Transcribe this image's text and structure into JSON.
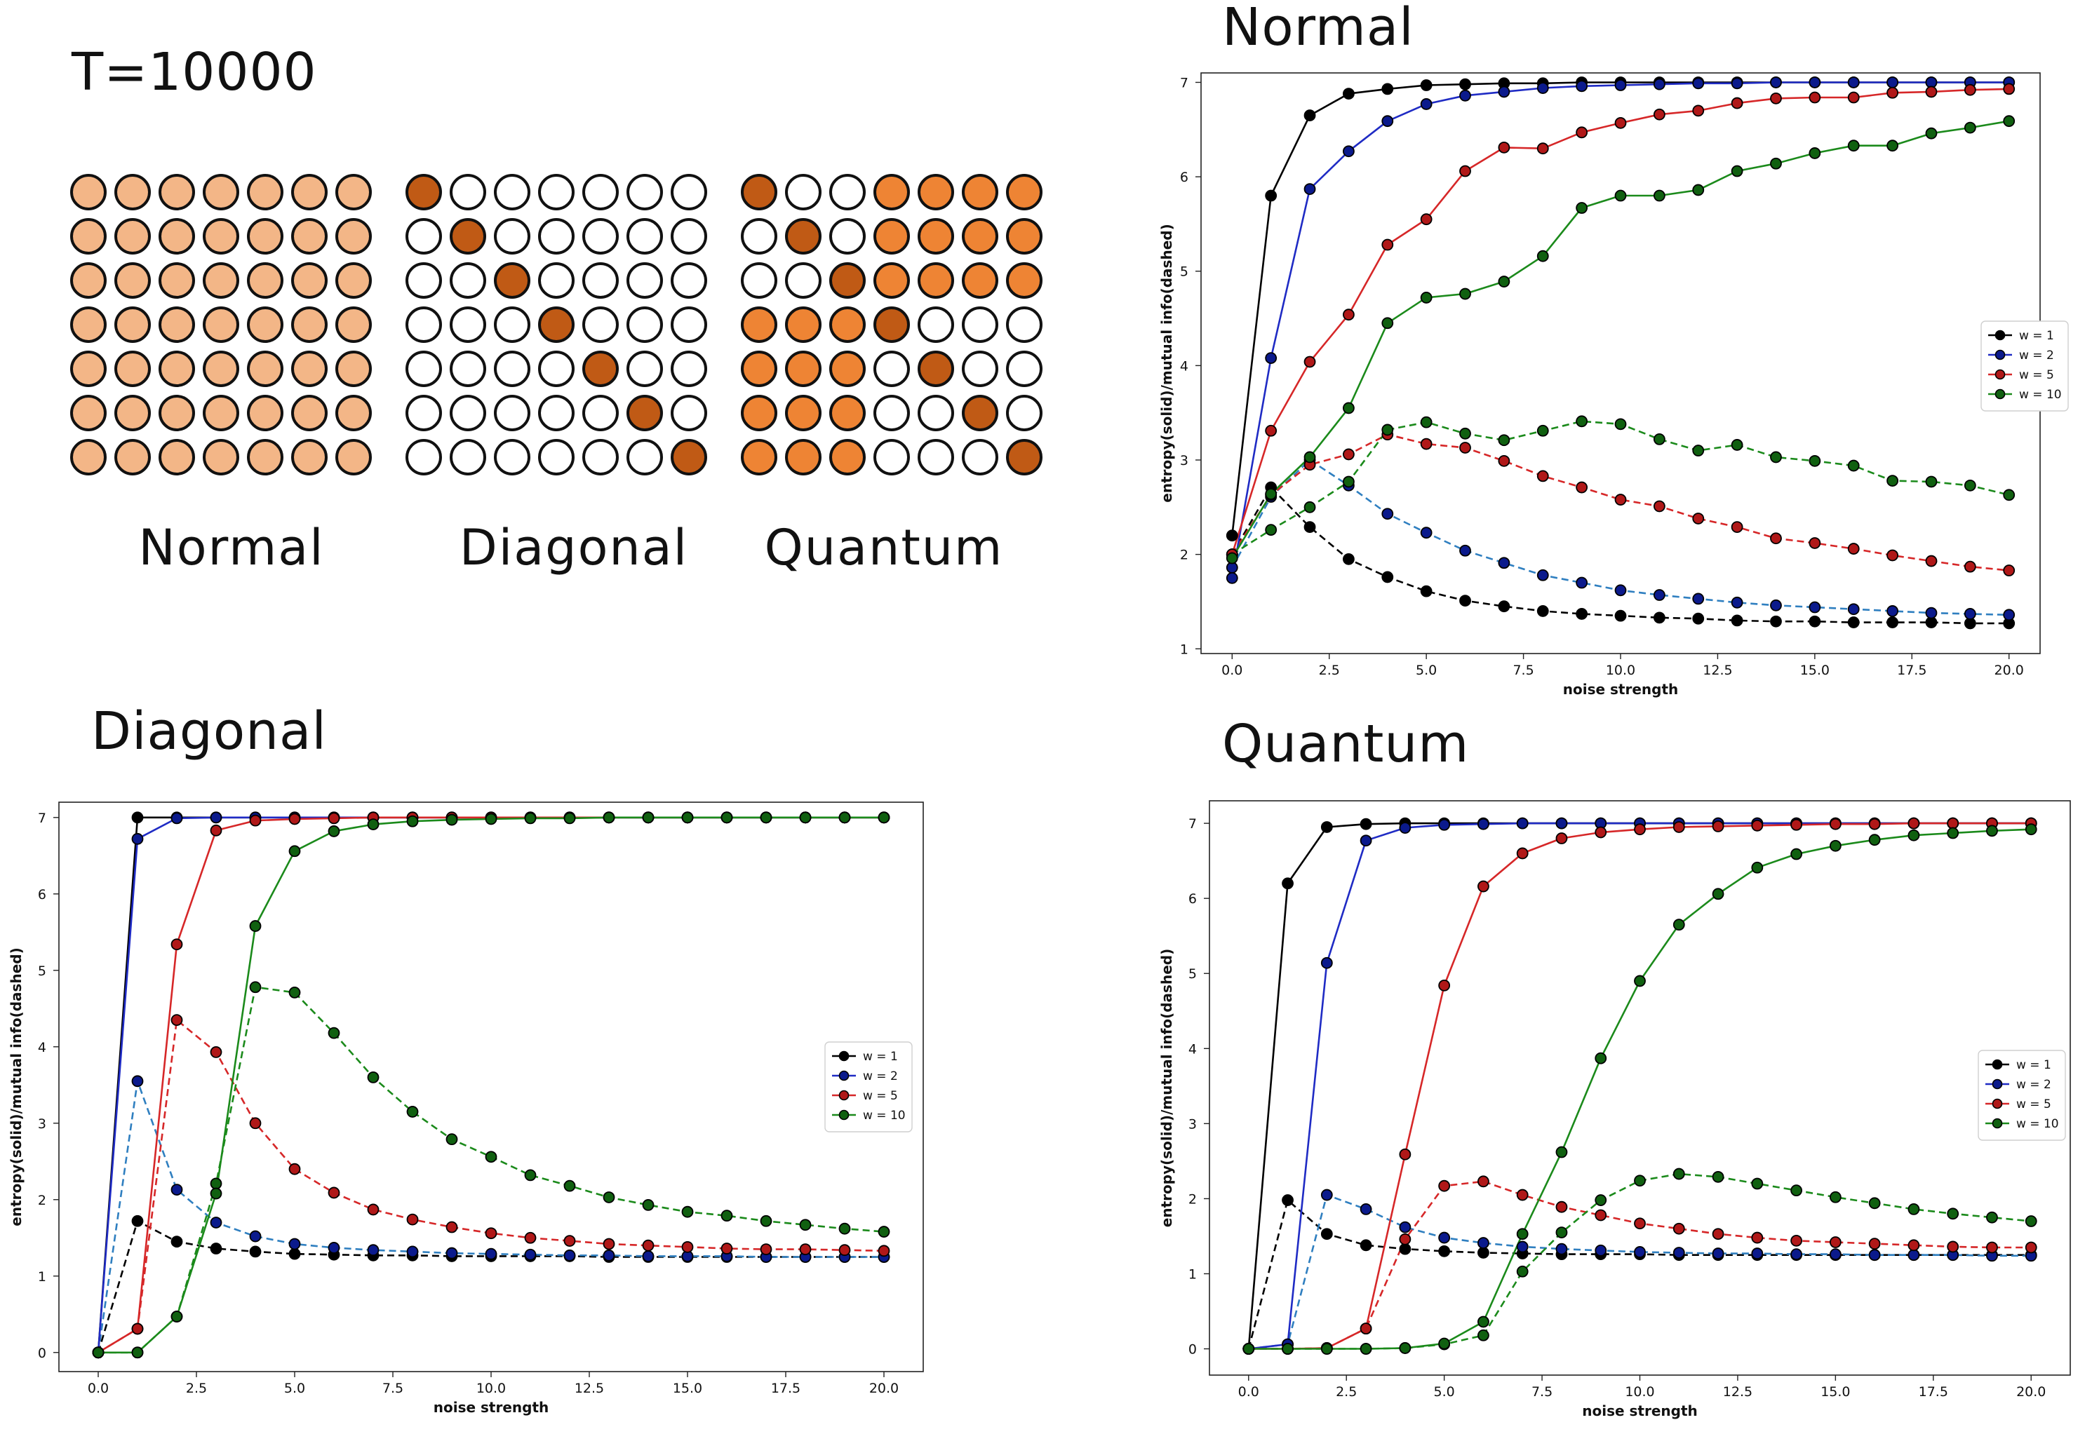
{
  "header": {
    "time_label": "T=10000"
  },
  "patterns": {
    "colors": {
      "light": "#f3b687",
      "orange": "#ee8434",
      "dark": "#c05a15",
      "empty": "#ffffff"
    },
    "items": [
      {
        "label": "Normal",
        "grid": [
          "LLLLLLL",
          "LLLLLLL",
          "LLLLLLL",
          "LLLLLLL",
          "LLLLLLL",
          "LLLLLLL",
          "LLLLLLL"
        ]
      },
      {
        "label": "Diagonal",
        "grid": [
          "D......",
          ".D.....",
          "..D....",
          "...D...",
          "....D..",
          ".....D.",
          "......D"
        ]
      },
      {
        "label": "Quantum",
        "grid": [
          "D..OOOO",
          ".D.OOOO",
          "..DOOOO",
          "OOOD...",
          "OOO.D..",
          "OOO..D.",
          "OOO...D"
        ]
      }
    ]
  },
  "chart_data": [
    {
      "id": "normal",
      "title": "Normal",
      "type": "line",
      "xlabel": "noise strength",
      "ylabel": "entropy(solid)/mutual info(dashed)",
      "xlim": [
        -0.8,
        20.8
      ],
      "ylim": [
        0.95,
        7.1
      ],
      "xticks": [
        "0.0",
        "2.5",
        "5.0",
        "7.5",
        "10.0",
        "12.5",
        "15.0",
        "17.5",
        "20.0"
      ],
      "yticks": [
        "1",
        "2",
        "3",
        "4",
        "5",
        "6",
        "7"
      ],
      "legend": [
        "w = 1",
        "w = 2",
        "w = 5",
        "w = 10"
      ],
      "legend_position": "center-right",
      "x": [
        0,
        1,
        2,
        3,
        4,
        5,
        6,
        7,
        8,
        9,
        10,
        11,
        12,
        13,
        14,
        15,
        16,
        17,
        18,
        19,
        20
      ],
      "series": [
        {
          "name": "w = 1",
          "color": "#000000",
          "style": "solid",
          "marker": "#000000",
          "values": [
            2.2,
            5.8,
            6.65,
            6.88,
            6.93,
            6.97,
            6.98,
            6.99,
            6.99,
            7.0,
            7.0,
            7.0,
            7.0,
            7.0,
            7.0,
            7.0,
            7.0,
            7.0,
            7.0,
            7.0,
            7.0
          ]
        },
        {
          "name": "w = 2",
          "color": "#1f2bc4",
          "style": "solid",
          "marker": "#0b1a8c",
          "values": [
            1.75,
            4.08,
            5.87,
            6.27,
            6.59,
            6.77,
            6.86,
            6.9,
            6.94,
            6.96,
            6.97,
            6.98,
            6.99,
            6.99,
            7.0,
            7.0,
            7.0,
            7.0,
            7.0,
            7.0,
            7.0
          ]
        },
        {
          "name": "w = 5",
          "color": "#d62728",
          "style": "solid",
          "marker": "#b01818",
          "values": [
            2.0,
            3.31,
            4.04,
            4.54,
            5.28,
            5.55,
            6.06,
            6.31,
            6.3,
            6.47,
            6.57,
            6.66,
            6.7,
            6.78,
            6.83,
            6.84,
            6.84,
            6.89,
            6.9,
            6.92,
            6.93
          ]
        },
        {
          "name": "w = 10",
          "color": "#1b8a1b",
          "style": "solid",
          "marker": "#106010",
          "values": [
            1.96,
            2.64,
            3.03,
            3.55,
            4.45,
            4.72,
            4.76,
            4.89,
            5.16,
            5.67,
            5.8,
            5.8,
            5.86,
            6.06,
            6.14,
            6.25,
            6.33,
            6.33,
            6.46,
            6.52,
            6.59
          ]
        },
        {
          "name": "w = 1 MI",
          "color": "#000000",
          "style": "dashed",
          "marker": "#000000",
          "values": [
            2.0,
            2.71,
            2.29,
            1.95,
            1.76,
            1.61,
            1.51,
            1.45,
            1.4,
            1.37,
            1.35,
            1.33,
            1.32,
            1.3,
            1.29,
            1.29,
            1.28,
            1.28,
            1.28,
            1.27,
            1.27
          ]
        },
        {
          "name": "w = 2 MI",
          "color": "#2f7fc0",
          "style": "dashed",
          "marker": "#0b1a8c",
          "values": [
            1.86,
            2.61,
            3.0,
            2.73,
            2.43,
            2.23,
            2.04,
            1.91,
            1.78,
            1.7,
            1.62,
            1.57,
            1.53,
            1.49,
            1.46,
            1.44,
            1.42,
            1.4,
            1.38,
            1.37,
            1.36
          ]
        },
        {
          "name": "w = 5 MI",
          "color": "#d62728",
          "style": "dashed",
          "marker": "#b01818",
          "values": [
            2.0,
            2.63,
            2.95,
            3.06,
            3.27,
            3.17,
            3.13,
            2.99,
            2.83,
            2.71,
            2.58,
            2.51,
            2.38,
            2.29,
            2.17,
            2.12,
            2.06,
            1.99,
            1.93,
            1.87,
            1.83
          ]
        },
        {
          "name": "w = 10 MI",
          "color": "#1b8a1b",
          "style": "dashed",
          "marker": "#106010",
          "values": [
            2.0,
            2.26,
            2.5,
            2.77,
            3.32,
            3.4,
            3.28,
            3.21,
            3.31,
            3.41,
            3.38,
            3.22,
            3.1,
            3.16,
            3.03,
            2.99,
            2.94,
            2.78,
            2.77,
            2.73,
            2.63
          ]
        }
      ]
    },
    {
      "id": "diagonal",
      "title": "Diagonal",
      "type": "line",
      "xlabel": "noise strength",
      "ylabel": "entropy(solid)/mutual info(dashed)",
      "xlim": [
        -1.0,
        21.0
      ],
      "ylim": [
        -0.25,
        7.2
      ],
      "xticks": [
        "0.0",
        "2.5",
        "5.0",
        "7.5",
        "10.0",
        "12.5",
        "15.0",
        "17.5",
        "20.0"
      ],
      "yticks": [
        "0",
        "1",
        "2",
        "3",
        "4",
        "5",
        "6",
        "7"
      ],
      "legend": [
        "w = 1",
        "w = 2",
        "w = 5",
        "w = 10"
      ],
      "legend_position": "center-right",
      "x": [
        0,
        1,
        2,
        3,
        4,
        5,
        6,
        7,
        8,
        9,
        10,
        11,
        12,
        13,
        14,
        15,
        16,
        17,
        18,
        19,
        20
      ],
      "series": [
        {
          "name": "w = 1",
          "color": "#000000",
          "style": "solid",
          "marker": "#000000",
          "values": [
            0.0,
            7.0,
            7.0,
            7.0,
            7.0,
            7.0,
            7.0,
            7.0,
            7.0,
            7.0,
            7.0,
            7.0,
            7.0,
            7.0,
            7.0,
            7.0,
            7.0,
            7.0,
            7.0,
            7.0,
            7.0
          ]
        },
        {
          "name": "w = 2",
          "color": "#1f2bc4",
          "style": "solid",
          "marker": "#0b1a8c",
          "values": [
            0.0,
            6.72,
            6.99,
            7.0,
            7.0,
            7.0,
            7.0,
            7.0,
            7.0,
            7.0,
            7.0,
            7.0,
            7.0,
            7.0,
            7.0,
            7.0,
            7.0,
            7.0,
            7.0,
            7.0,
            7.0
          ]
        },
        {
          "name": "w = 5",
          "color": "#d62728",
          "style": "solid",
          "marker": "#b01818",
          "values": [
            0.0,
            0.31,
            5.34,
            6.83,
            6.96,
            6.98,
            6.99,
            7.0,
            7.0,
            7.0,
            7.0,
            7.0,
            7.0,
            7.0,
            7.0,
            7.0,
            7.0,
            7.0,
            7.0,
            7.0,
            7.0
          ]
        },
        {
          "name": "w = 10",
          "color": "#1b8a1b",
          "style": "solid",
          "marker": "#106010",
          "values": [
            0.0,
            0.0,
            0.47,
            2.08,
            5.58,
            6.56,
            6.82,
            6.91,
            6.95,
            6.97,
            6.98,
            6.99,
            6.99,
            7.0,
            7.0,
            7.0,
            7.0,
            7.0,
            7.0,
            7.0,
            7.0
          ]
        },
        {
          "name": "w = 1 MI",
          "color": "#000000",
          "style": "dashed",
          "marker": "#000000",
          "values": [
            0.0,
            1.72,
            1.45,
            1.36,
            1.32,
            1.29,
            1.28,
            1.27,
            1.27,
            1.26,
            1.26,
            1.26,
            1.26,
            1.25,
            1.25,
            1.25,
            1.25,
            1.25,
            1.25,
            1.25,
            1.25
          ]
        },
        {
          "name": "w = 2 MI",
          "color": "#2f7fc0",
          "style": "dashed",
          "marker": "#0b1a8c",
          "values": [
            0.0,
            3.55,
            2.13,
            1.7,
            1.52,
            1.42,
            1.37,
            1.34,
            1.32,
            1.3,
            1.29,
            1.28,
            1.27,
            1.27,
            1.26,
            1.26,
            1.26,
            1.25,
            1.25,
            1.25,
            1.25
          ]
        },
        {
          "name": "w = 5 MI",
          "color": "#d62728",
          "style": "dashed",
          "marker": "#b01818",
          "values": [
            0.0,
            0.31,
            4.35,
            3.93,
            3.0,
            2.4,
            2.09,
            1.87,
            1.74,
            1.64,
            1.56,
            1.5,
            1.46,
            1.42,
            1.4,
            1.38,
            1.36,
            1.35,
            1.35,
            1.34,
            1.33
          ]
        },
        {
          "name": "w = 10 MI",
          "color": "#1b8a1b",
          "style": "dashed",
          "marker": "#106010",
          "values": [
            0.0,
            0.0,
            0.47,
            2.21,
            4.78,
            4.71,
            4.18,
            3.6,
            3.15,
            2.79,
            2.56,
            2.32,
            2.18,
            2.03,
            1.93,
            1.84,
            1.79,
            1.72,
            1.67,
            1.62,
            1.58
          ]
        }
      ]
    },
    {
      "id": "quantum",
      "title": "Quantum",
      "type": "line",
      "xlabel": "noise strength",
      "ylabel": "entropy(solid)/mutual info(dashed)",
      "xlim": [
        -1.0,
        21.0
      ],
      "ylim": [
        -0.35,
        7.3
      ],
      "xticks": [
        "0.0",
        "2.5",
        "5.0",
        "7.5",
        "10.0",
        "12.5",
        "15.0",
        "17.5",
        "20.0"
      ],
      "yticks": [
        "0",
        "1",
        "2",
        "3",
        "4",
        "5",
        "6",
        "7"
      ],
      "legend": [
        "w = 1",
        "w = 2",
        "w = 5",
        "w = 10"
      ],
      "legend_position": "center-right",
      "x": [
        0,
        1,
        2,
        3,
        4,
        5,
        6,
        7,
        8,
        9,
        10,
        11,
        12,
        13,
        14,
        15,
        16,
        17,
        18,
        19,
        20
      ],
      "series": [
        {
          "name": "w = 1",
          "color": "#000000",
          "style": "solid",
          "marker": "#000000",
          "values": [
            0.0,
            6.2,
            6.95,
            6.99,
            7.0,
            7.0,
            7.0,
            7.0,
            7.0,
            7.0,
            7.0,
            7.0,
            7.0,
            7.0,
            7.0,
            7.0,
            7.0,
            7.0,
            7.0,
            7.0,
            7.0
          ]
        },
        {
          "name": "w = 2",
          "color": "#1f2bc4",
          "style": "solid",
          "marker": "#0b1a8c",
          "values": [
            0.0,
            0.06,
            5.14,
            6.77,
            6.94,
            6.98,
            6.99,
            7.0,
            7.0,
            7.0,
            7.0,
            7.0,
            7.0,
            7.0,
            7.0,
            7.0,
            7.0,
            7.0,
            7.0,
            7.0,
            7.0
          ]
        },
        {
          "name": "w = 5",
          "color": "#d62728",
          "style": "solid",
          "marker": "#b01818",
          "values": [
            0.0,
            0.0,
            0.01,
            0.27,
            2.59,
            4.84,
            6.16,
            6.6,
            6.8,
            6.88,
            6.92,
            6.95,
            6.96,
            6.97,
            6.98,
            6.99,
            6.99,
            7.0,
            7.0,
            7.0,
            7.0
          ]
        },
        {
          "name": "w = 10",
          "color": "#1b8a1b",
          "style": "solid",
          "marker": "#106010",
          "values": [
            0.0,
            0.0,
            0.0,
            0.0,
            0.01,
            0.07,
            0.36,
            1.53,
            2.62,
            3.87,
            4.9,
            5.65,
            6.06,
            6.41,
            6.59,
            6.7,
            6.78,
            6.84,
            6.87,
            6.9,
            6.92
          ]
        },
        {
          "name": "w = 1 MI",
          "color": "#000000",
          "style": "dashed",
          "marker": "#000000",
          "values": [
            0.0,
            1.98,
            1.53,
            1.38,
            1.33,
            1.3,
            1.28,
            1.27,
            1.26,
            1.26,
            1.26,
            1.25,
            1.25,
            1.25,
            1.25,
            1.25,
            1.25,
            1.25,
            1.25,
            1.25,
            1.25
          ]
        },
        {
          "name": "w = 2 MI",
          "color": "#2f7fc0",
          "style": "dashed",
          "marker": "#0b1a8c",
          "values": [
            0.0,
            0.06,
            2.05,
            1.86,
            1.62,
            1.48,
            1.41,
            1.36,
            1.33,
            1.31,
            1.29,
            1.28,
            1.27,
            1.27,
            1.26,
            1.26,
            1.25,
            1.25,
            1.25,
            1.24,
            1.24
          ]
        },
        {
          "name": "w = 5 MI",
          "color": "#d62728",
          "style": "dashed",
          "marker": "#b01818",
          "values": [
            0.0,
            0.0,
            0.01,
            0.27,
            1.46,
            2.17,
            2.23,
            2.05,
            1.89,
            1.78,
            1.67,
            1.6,
            1.53,
            1.48,
            1.44,
            1.42,
            1.4,
            1.38,
            1.36,
            1.35,
            1.35
          ]
        },
        {
          "name": "w = 10 MI",
          "color": "#1b8a1b",
          "style": "dashed",
          "marker": "#106010",
          "values": [
            0.0,
            0.0,
            0.0,
            0.0,
            0.01,
            0.06,
            0.18,
            1.03,
            1.55,
            1.98,
            2.24,
            2.33,
            2.29,
            2.2,
            2.11,
            2.02,
            1.94,
            1.86,
            1.8,
            1.75,
            1.7
          ]
        }
      ]
    }
  ]
}
